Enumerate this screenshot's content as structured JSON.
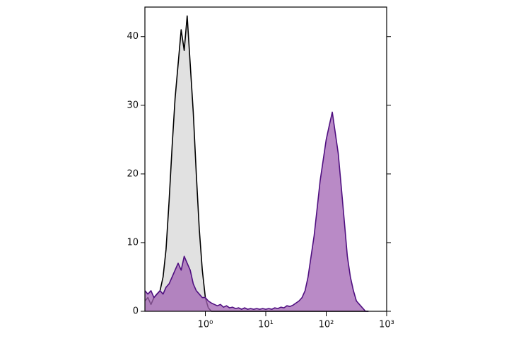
{
  "chart_data": {
    "type": "area",
    "xscale": "log",
    "x": [
      0.1,
      0.112,
      0.126,
      0.141,
      0.158,
      0.178,
      0.2,
      0.224,
      0.251,
      0.282,
      0.316,
      0.355,
      0.398,
      0.447,
      0.501,
      0.562,
      0.631,
      0.708,
      0.794,
      0.891,
      1,
      1.12,
      1.26,
      1.41,
      1.58,
      1.78,
      2,
      2.24,
      2.51,
      2.82,
      3.16,
      3.55,
      3.98,
      4.47,
      5.01,
      5.62,
      6.31,
      7.08,
      7.94,
      8.91,
      10,
      11.2,
      12.6,
      14.1,
      15.8,
      17.8,
      20,
      22.4,
      25.1,
      28.2,
      31.6,
      35.5,
      39.8,
      44.7,
      50.1,
      56.2,
      63.1,
      70.8,
      79.4,
      89.1,
      100,
      112,
      126,
      141,
      158,
      178,
      200,
      224,
      251,
      282,
      316,
      355,
      398,
      447,
      501
    ],
    "series": [
      {
        "fill": "#e1e1e1",
        "color": "#000000",
        "values": [
          1.5,
          2,
          1,
          2,
          2.5,
          3,
          5,
          9,
          16,
          24,
          31,
          36,
          41,
          38,
          43,
          36,
          29,
          20,
          12,
          6,
          2,
          0.5,
          0,
          0,
          0,
          0,
          0,
          0,
          0,
          0,
          0,
          0,
          0,
          0,
          0,
          0,
          0,
          0,
          0,
          0,
          0,
          0,
          0,
          0,
          0,
          0,
          0,
          0,
          0,
          0,
          0,
          0,
          0,
          0,
          0,
          0,
          0,
          0,
          0,
          0,
          0,
          0,
          0,
          0,
          0,
          0,
          0,
          0,
          0,
          0,
          0,
          0,
          0,
          0,
          0
        ]
      },
      {
        "fill": "#a263b3",
        "color": "#4f0f80",
        "values": [
          3,
          2.5,
          3,
          2,
          2.5,
          3,
          2.5,
          3.5,
          4,
          5,
          6,
          7,
          6,
          8,
          7,
          6,
          4,
          3,
          2.5,
          2,
          2,
          1.5,
          1.2,
          1,
          0.8,
          1,
          0.6,
          0.8,
          0.5,
          0.6,
          0.4,
          0.5,
          0.3,
          0.5,
          0.3,
          0.4,
          0.3,
          0.4,
          0.3,
          0.4,
          0.3,
          0.4,
          0.3,
          0.5,
          0.4,
          0.6,
          0.5,
          0.8,
          0.7,
          0.9,
          1.2,
          1.5,
          2,
          3,
          5,
          8,
          11,
          15,
          19,
          22,
          25,
          27,
          29,
          26,
          23,
          18,
          13,
          8,
          5,
          3,
          1.5,
          1,
          0.5,
          0,
          0
        ]
      }
    ],
    "xlim": [
      0.1,
      1000
    ],
    "xticks": [
      {
        "value": 1,
        "label": "10⁰"
      },
      {
        "value": 10,
        "label": "10¹"
      },
      {
        "value": 100,
        "label": "10²"
      },
      {
        "value": 1000,
        "label": "10³"
      }
    ],
    "ylim": [
      0,
      44.3
    ],
    "yticks": [
      0,
      10,
      20,
      30,
      40
    ]
  }
}
